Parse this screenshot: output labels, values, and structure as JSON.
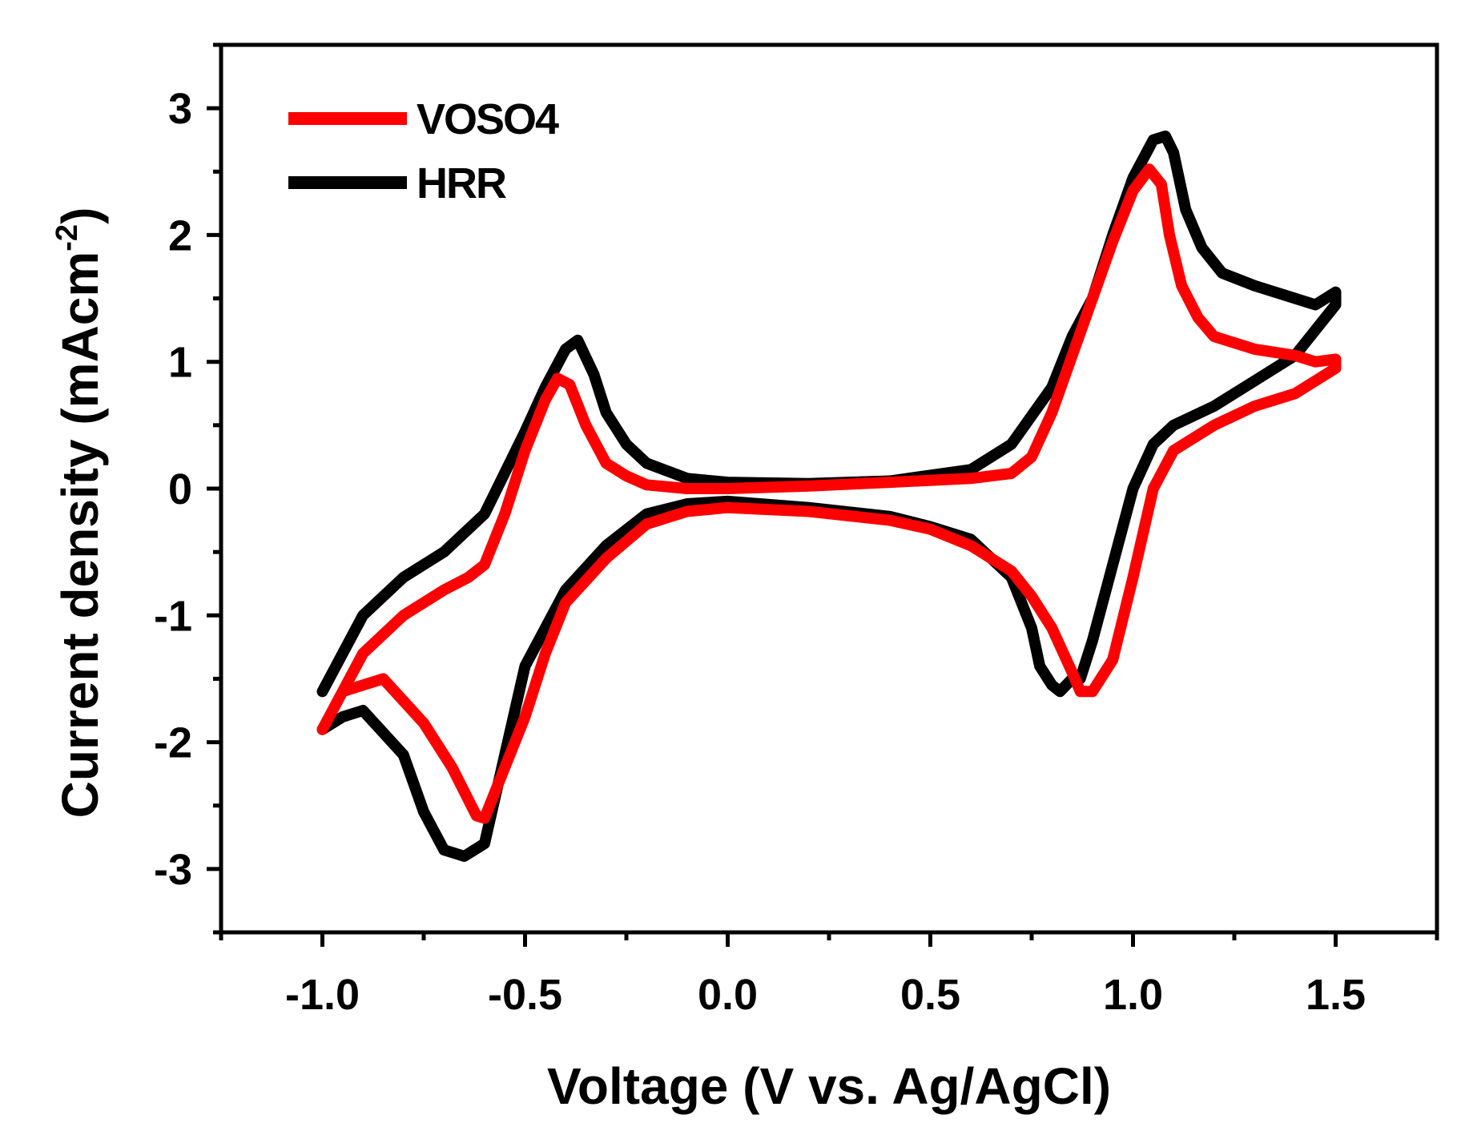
{
  "chart_data": {
    "type": "line",
    "xlabel": "Voltage (V vs. Ag/AgCl)",
    "ylabel": "Current density (mAcm",
    "ylabel_sup": "-2",
    "ylabel_close": ")",
    "xlim": [
      -1.25,
      1.75
    ],
    "ylim": [
      -3.5,
      3.5
    ],
    "x_ticks": [
      -1.0,
      -0.5,
      0.0,
      0.5,
      1.0,
      1.5
    ],
    "x_tick_labels": [
      "-1.0",
      "-0.5",
      "0.0",
      "0.5",
      "1.0",
      "1.5"
    ],
    "x_minor_ticks": [
      -1.25,
      -0.75,
      -0.25,
      0.25,
      0.75,
      1.25,
      1.75
    ],
    "y_ticks": [
      -3,
      -2,
      -1,
      0,
      1,
      2,
      3
    ],
    "y_tick_labels": [
      "-3",
      "-2",
      "-1",
      "0",
      "1",
      "2",
      "3"
    ],
    "y_minor_ticks": [
      -3.5,
      -2.5,
      -1.5,
      -0.5,
      0.5,
      1.5,
      2.5,
      3.5
    ],
    "grid": false,
    "legend_position": "top-left",
    "series": [
      {
        "name": "HRR",
        "color": "#000000",
        "x": [
          -1.0,
          -0.9,
          -0.8,
          -0.7,
          -0.6,
          -0.5,
          -0.45,
          -0.4,
          -0.37,
          -0.33,
          -0.3,
          -0.25,
          -0.2,
          -0.1,
          0.0,
          0.2,
          0.4,
          0.6,
          0.7,
          0.8,
          0.85,
          0.9,
          0.95,
          1.0,
          1.05,
          1.08,
          1.1,
          1.13,
          1.17,
          1.22,
          1.3,
          1.4,
          1.45,
          1.5,
          1.5,
          1.4,
          1.3,
          1.2,
          1.1,
          1.05,
          1.0,
          0.95,
          0.9,
          0.87,
          0.85,
          0.82,
          0.8,
          0.77,
          0.75,
          0.7,
          0.6,
          0.5,
          0.4,
          0.2,
          0.0,
          -0.1,
          -0.2,
          -0.3,
          -0.4,
          -0.5,
          -0.55,
          -0.6,
          -0.65,
          -0.7,
          -0.75,
          -0.8,
          -0.9,
          -0.95,
          -1.0
        ],
        "y": [
          -1.6,
          -1.0,
          -0.7,
          -0.5,
          -0.2,
          0.45,
          0.8,
          1.1,
          1.17,
          0.9,
          0.6,
          0.35,
          0.2,
          0.08,
          0.05,
          0.04,
          0.06,
          0.15,
          0.35,
          0.8,
          1.2,
          1.5,
          2.0,
          2.45,
          2.75,
          2.78,
          2.65,
          2.2,
          1.9,
          1.7,
          1.6,
          1.5,
          1.45,
          1.55,
          1.45,
          1.05,
          0.85,
          0.65,
          0.5,
          0.35,
          0.0,
          -0.6,
          -1.2,
          -1.5,
          -1.5,
          -1.6,
          -1.55,
          -1.4,
          -1.1,
          -0.7,
          -0.4,
          -0.3,
          -0.22,
          -0.15,
          -0.1,
          -0.12,
          -0.2,
          -0.45,
          -0.8,
          -1.4,
          -2.1,
          -2.8,
          -2.9,
          -2.85,
          -2.55,
          -2.1,
          -1.75,
          -1.8,
          -1.9
        ]
      },
      {
        "name": "VOSO4",
        "color": "#ff0000",
        "x": [
          -1.0,
          -0.95,
          -0.9,
          -0.8,
          -0.7,
          -0.64,
          -0.6,
          -0.55,
          -0.5,
          -0.45,
          -0.42,
          -0.39,
          -0.35,
          -0.3,
          -0.25,
          -0.2,
          -0.1,
          0.0,
          0.2,
          0.4,
          0.6,
          0.7,
          0.75,
          0.8,
          0.85,
          0.9,
          0.95,
          1.0,
          1.04,
          1.07,
          1.09,
          1.12,
          1.16,
          1.2,
          1.3,
          1.4,
          1.45,
          1.5,
          1.5,
          1.45,
          1.4,
          1.3,
          1.2,
          1.1,
          1.05,
          1.0,
          0.95,
          0.9,
          0.87,
          0.85,
          0.8,
          0.75,
          0.7,
          0.6,
          0.5,
          0.4,
          0.2,
          0.0,
          -0.1,
          -0.2,
          -0.3,
          -0.4,
          -0.45,
          -0.5,
          -0.55,
          -0.6,
          -0.62,
          -0.68,
          -0.75,
          -0.85,
          -0.9,
          -0.95,
          -1.0
        ],
        "y": [
          -1.9,
          -1.6,
          -1.3,
          -1.0,
          -0.8,
          -0.7,
          -0.6,
          -0.2,
          0.3,
          0.7,
          0.87,
          0.82,
          0.5,
          0.2,
          0.1,
          0.03,
          0.0,
          0.0,
          0.02,
          0.05,
          0.08,
          0.12,
          0.25,
          0.6,
          1.05,
          1.5,
          1.95,
          2.35,
          2.52,
          2.4,
          2.0,
          1.6,
          1.35,
          1.2,
          1.1,
          1.05,
          1.0,
          1.02,
          0.95,
          0.85,
          0.75,
          0.65,
          0.5,
          0.3,
          0.0,
          -0.7,
          -1.35,
          -1.6,
          -1.6,
          -1.45,
          -1.1,
          -0.85,
          -0.65,
          -0.45,
          -0.32,
          -0.25,
          -0.18,
          -0.15,
          -0.18,
          -0.28,
          -0.55,
          -0.9,
          -1.3,
          -1.8,
          -2.2,
          -2.6,
          -2.58,
          -2.2,
          -1.85,
          -1.5,
          -1.55,
          -1.6,
          -1.9
        ]
      }
    ],
    "legend": [
      {
        "name": "VOSO4",
        "color": "#ff0000"
      },
      {
        "name": "HRR",
        "color": "#000000"
      }
    ]
  }
}
